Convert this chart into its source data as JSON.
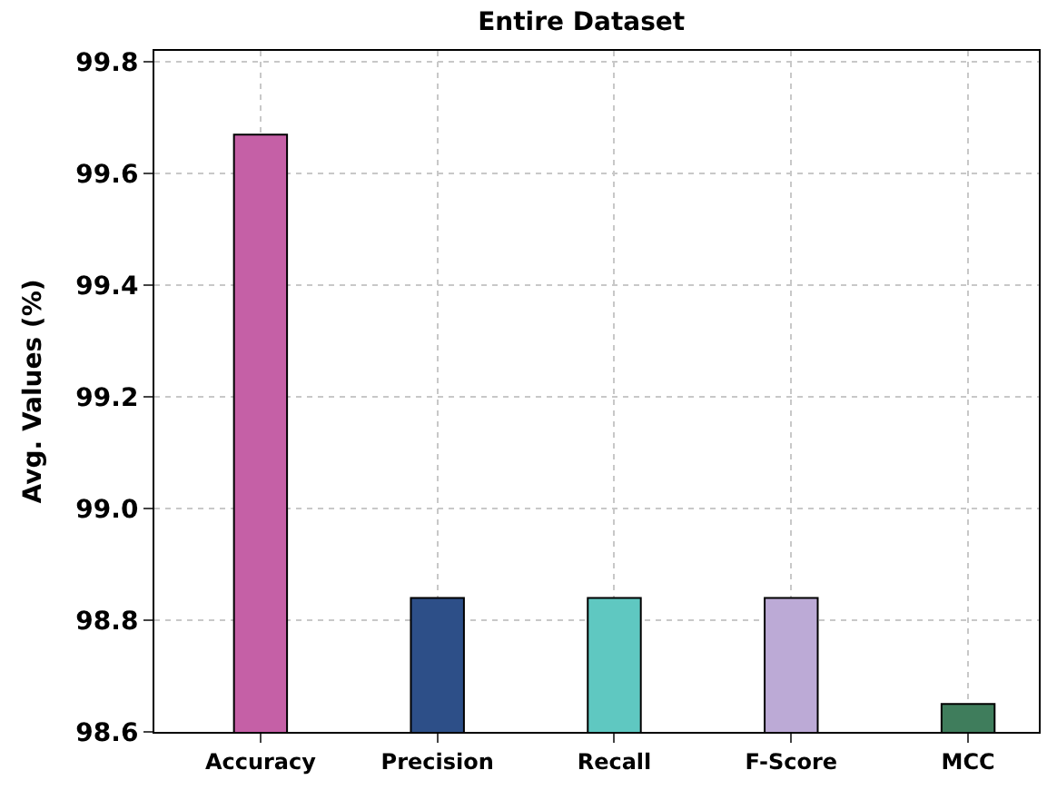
{
  "chart_data": {
    "type": "bar",
    "title": "Entire Dataset",
    "ylabel": "Avg. Values (%)",
    "categories": [
      "Accuracy",
      "Precision",
      "Recall",
      "F-Score",
      "MCC"
    ],
    "values": [
      99.67,
      98.84,
      98.84,
      98.84,
      98.65
    ],
    "colors": [
      "#c560a6",
      "#2d4f88",
      "#5fc8c1",
      "#bcaad6",
      "#3f7d5c"
    ],
    "ylim": [
      98.6,
      99.82
    ],
    "yticks": [
      98.6,
      98.8,
      {
        "value": 99,
        "label": "99.0"
      },
      99.2,
      99.4,
      99.6,
      99.8
    ],
    "grid": true
  }
}
